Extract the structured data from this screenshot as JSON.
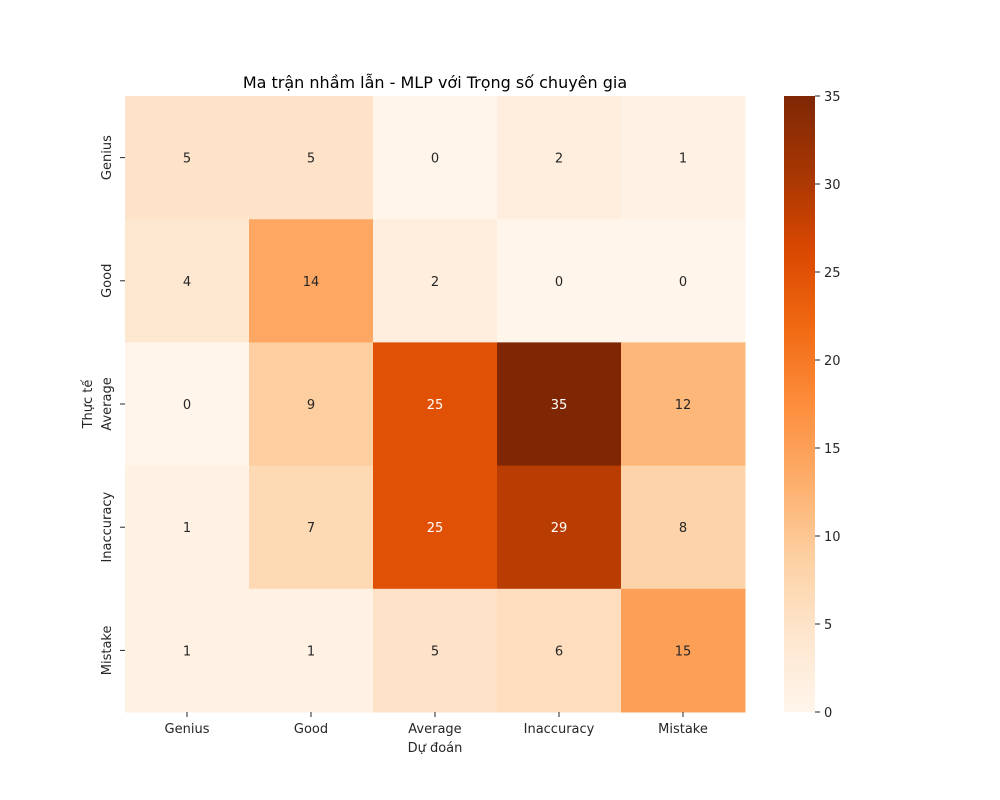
{
  "chart_data": {
    "type": "heatmap",
    "title": "Ma trận nhầm lẫn - MLP với Trọng số chuyên gia",
    "xlabel": "Dự đoán",
    "ylabel": "Thực tế",
    "x_categories": [
      "Genius",
      "Good",
      "Average",
      "Inaccuracy",
      "Mistake"
    ],
    "y_categories": [
      "Genius",
      "Good",
      "Average",
      "Inaccuracy",
      "Mistake"
    ],
    "values": [
      [
        5,
        5,
        0,
        2,
        1
      ],
      [
        4,
        14,
        2,
        0,
        0
      ],
      [
        0,
        9,
        25,
        35,
        12
      ],
      [
        1,
        7,
        25,
        29,
        8
      ],
      [
        1,
        1,
        5,
        6,
        15
      ]
    ],
    "colorbar": {
      "min": 0,
      "max": 35,
      "ticks": [
        0,
        5,
        10,
        15,
        20,
        25,
        30,
        35
      ]
    },
    "colormap": "Oranges",
    "grid": false
  }
}
